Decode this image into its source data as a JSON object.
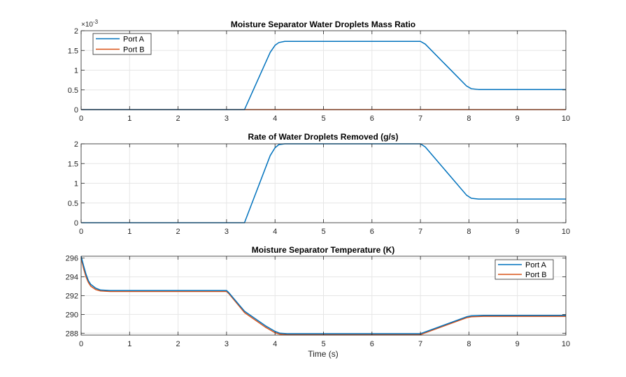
{
  "chart_data": [
    {
      "type": "line",
      "title": "Moisture Separator Water Droplets Mass Ratio",
      "xlabel": "",
      "ylabel": "",
      "xlim": [
        0,
        10
      ],
      "ylim": [
        0,
        2
      ],
      "y_exponent_label": "×10",
      "y_exponent_power": "-3",
      "xticks": [
        0,
        1,
        2,
        3,
        4,
        5,
        6,
        7,
        8,
        9,
        10
      ],
      "xtick_labels": [
        "0",
        "1",
        "2",
        "3",
        "4",
        "5",
        "6",
        "7",
        "8",
        "9",
        "10"
      ],
      "yticks": [
        0,
        0.5,
        1,
        1.5,
        2
      ],
      "ytick_labels": [
        "0",
        "0.5",
        "1",
        "1.5",
        "2"
      ],
      "grid": true,
      "legend": "top-left",
      "series": [
        {
          "name": "Port A",
          "color": "#0072BD",
          "x": [
            0,
            3.37,
            3.9,
            4.0,
            4.08,
            4.2,
            7.0,
            7.1,
            7.95,
            8.05,
            8.2,
            10.0
          ],
          "y": [
            0,
            0,
            1.45,
            1.63,
            1.7,
            1.73,
            1.73,
            1.66,
            0.6,
            0.53,
            0.51,
            0.51
          ]
        },
        {
          "name": "Port B",
          "color": "#D95319",
          "x": [
            0,
            10
          ],
          "y": [
            0,
            0
          ]
        }
      ]
    },
    {
      "type": "line",
      "title": "Rate of Water Droplets Removed (g/s)",
      "xlabel": "",
      "ylabel": "",
      "xlim": [
        0,
        10
      ],
      "ylim": [
        0,
        2
      ],
      "xticks": [
        0,
        1,
        2,
        3,
        4,
        5,
        6,
        7,
        8,
        9,
        10
      ],
      "xtick_labels": [
        "0",
        "1",
        "2",
        "3",
        "4",
        "5",
        "6",
        "7",
        "8",
        "9",
        "10"
      ],
      "yticks": [
        0,
        0.5,
        1,
        1.5,
        2
      ],
      "ytick_labels": [
        "0",
        "0.5",
        "1",
        "1.5",
        "2"
      ],
      "grid": true,
      "legend": "none",
      "series": [
        {
          "name": "",
          "color": "#0072BD",
          "x": [
            0,
            3.37,
            3.9,
            4.0,
            4.08,
            4.2,
            7.0,
            7.1,
            7.95,
            8.05,
            8.2,
            10.0
          ],
          "y": [
            0,
            0,
            1.7,
            1.9,
            1.98,
            2.0,
            2.0,
            1.92,
            0.7,
            0.62,
            0.6,
            0.6
          ]
        }
      ]
    },
    {
      "type": "line",
      "title": "Moisture Separator Temperature (K)",
      "xlabel": "Time (s)",
      "ylabel": "",
      "xlim": [
        0,
        10
      ],
      "ylim": [
        287.8,
        296.2
      ],
      "xticks": [
        0,
        1,
        2,
        3,
        4,
        5,
        6,
        7,
        8,
        9,
        10
      ],
      "xtick_labels": [
        "0",
        "1",
        "2",
        "3",
        "4",
        "5",
        "6",
        "7",
        "8",
        "9",
        "10"
      ],
      "yticks": [
        288,
        290,
        292,
        294,
        296
      ],
      "ytick_labels": [
        "288",
        "290",
        "292",
        "294",
        "296"
      ],
      "grid": true,
      "legend": "top-right",
      "series": [
        {
          "name": "Port A",
          "color": "#0072BD",
          "x": [
            0,
            0.05,
            0.1,
            0.15,
            0.2,
            0.3,
            0.4,
            0.6,
            3.0,
            3.05,
            3.37,
            3.8,
            4.0,
            4.1,
            4.25,
            7.0,
            7.95,
            8.05,
            8.3,
            10.0
          ],
          "y": [
            296.2,
            295.2,
            294.3,
            293.6,
            293.2,
            292.8,
            292.6,
            292.55,
            292.55,
            292.3,
            290.35,
            288.8,
            288.2,
            288.0,
            287.95,
            287.95,
            289.75,
            289.85,
            289.9,
            289.9
          ]
        },
        {
          "name": "Port B",
          "color": "#D95319",
          "x": [
            0,
            0.05,
            0.1,
            0.15,
            0.2,
            0.3,
            0.4,
            0.6,
            3.0,
            3.05,
            3.37,
            3.8,
            4.0,
            4.1,
            4.25,
            7.0,
            7.95,
            8.05,
            8.3,
            10.0
          ],
          "y": [
            296.0,
            294.9,
            294.0,
            293.4,
            293.0,
            292.65,
            292.5,
            292.45,
            292.45,
            292.2,
            290.2,
            288.65,
            288.05,
            287.9,
            287.85,
            287.85,
            289.65,
            289.75,
            289.8,
            289.8
          ]
        }
      ]
    }
  ]
}
